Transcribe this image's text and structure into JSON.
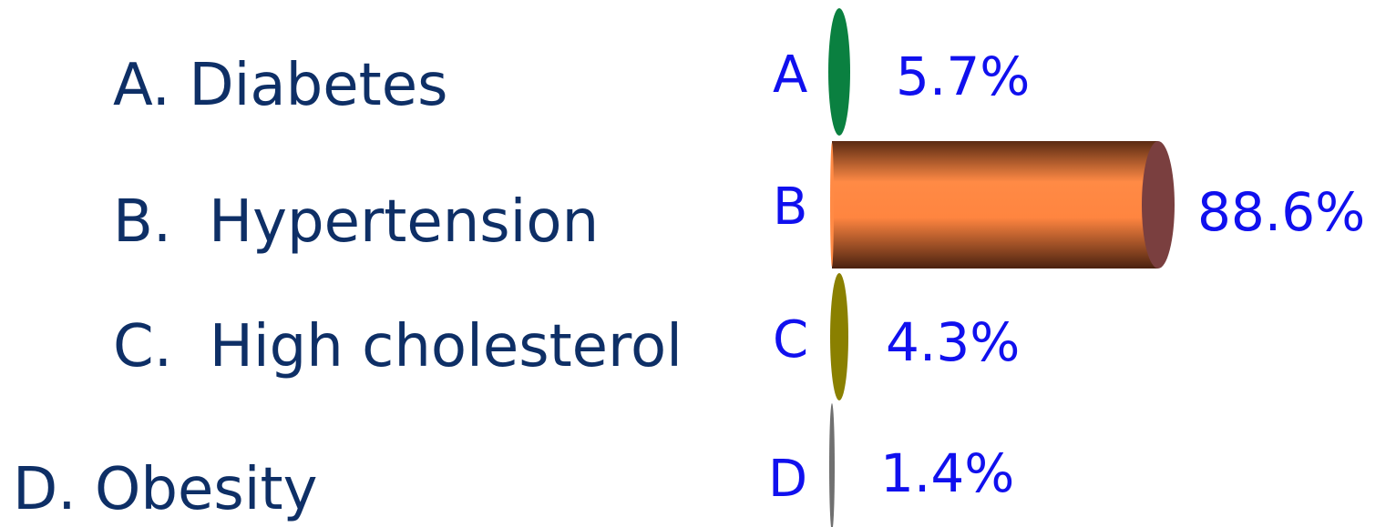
{
  "answers": [
    {
      "letter": "A",
      "text": "A. Diabetes"
    },
    {
      "letter": "B",
      "text": "B.  Hypertension"
    },
    {
      "letter": "C",
      "text": "C.  High cholesterol"
    },
    {
      "letter": "D",
      "text": "D. Obesity"
    }
  ],
  "chart_data": {
    "type": "bar",
    "orientation": "horizontal",
    "style": "3d-cylinder",
    "categories": [
      "A",
      "B",
      "C",
      "D"
    ],
    "values": [
      5.7,
      88.6,
      4.3,
      1.4
    ],
    "value_labels": [
      "5.7%",
      "88.6%",
      "4.3%",
      "1.4%"
    ],
    "unit": "%",
    "xlim": [
      0,
      100
    ],
    "grid": false,
    "legend": "none",
    "colors": {
      "A": "#0a8040",
      "B": "#ff8040",
      "C": "#8a8000",
      "D": "#707070",
      "label_color": "#1010ee"
    }
  }
}
